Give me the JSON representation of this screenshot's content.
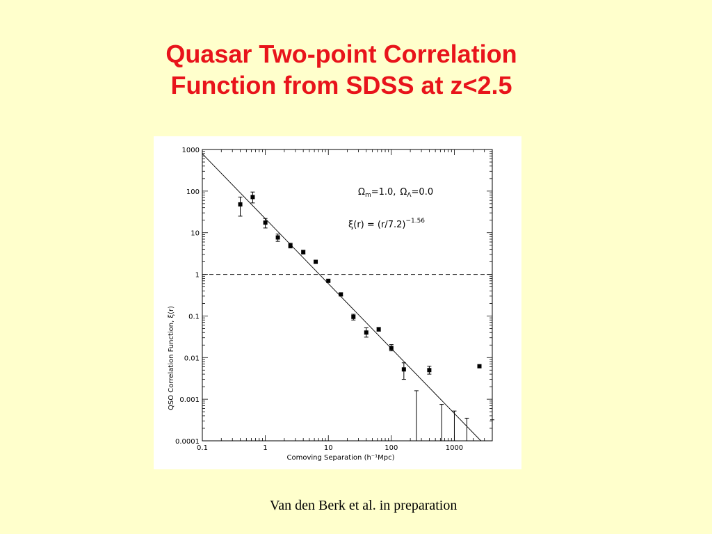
{
  "title": {
    "line1": "Quasar Two-point Correlation",
    "line2": "Function from SDSS at z<2.5"
  },
  "credit": "Van den Berk et al. in preparation",
  "colors": {
    "background": "#ffffcc",
    "title": "#e8141b",
    "panel": "#ffffff",
    "ink": "#000000"
  },
  "chart_data": {
    "type": "scatter",
    "xlabel": "Comoving Separation (h⁻¹Mpc)",
    "ylabel": "QSO Correlation Function, ξ(r)",
    "xscale": "log",
    "yscale": "log",
    "xlim": [
      0.1,
      4000
    ],
    "ylim": [
      0.0001,
      1000
    ],
    "x_ticks": [
      {
        "value": 0.1,
        "label": "0.1"
      },
      {
        "value": 1,
        "label": "1"
      },
      {
        "value": 10,
        "label": "10"
      },
      {
        "value": 100,
        "label": "100"
      },
      {
        "value": 1000,
        "label": "1000"
      }
    ],
    "y_ticks": [
      {
        "value": 0.0001,
        "label": "0.0001"
      },
      {
        "value": 0.001,
        "label": "0.001"
      },
      {
        "value": 0.01,
        "label": "0.01"
      },
      {
        "value": 0.1,
        "label": "0.1"
      },
      {
        "value": 1,
        "label": "1"
      },
      {
        "value": 10,
        "label": "10"
      },
      {
        "value": 100,
        "label": "100"
      },
      {
        "value": 1000,
        "label": "1000"
      }
    ],
    "annotations": {
      "cosmology": {
        "omega": "Ω",
        "m_sub": "m",
        "m_val": "=1.0,",
        "lambda_sub": "Λ",
        "lambda_val": "=0.0"
      },
      "fit": {
        "lhs": "ξ(r)  =  (r/7.2)",
        "exponent": "−1.56"
      }
    },
    "reference_line": {
      "y": 1,
      "style": "dashed"
    },
    "fit_line": {
      "r0": 7.2,
      "gamma": 1.56
    },
    "series": [
      {
        "points": [
          {
            "x": 0.4,
            "y": 48,
            "lo": 25,
            "hi": 72
          },
          {
            "x": 0.63,
            "y": 72,
            "lo": 52,
            "hi": 95
          },
          {
            "x": 1.0,
            "y": 17.5,
            "lo": 13,
            "hi": 22
          },
          {
            "x": 1.58,
            "y": 7.7,
            "lo": 6.2,
            "hi": 9.3
          },
          {
            "x": 2.5,
            "y": 4.9,
            "lo": 4.3,
            "hi": 5.6
          },
          {
            "x": 4.0,
            "y": 3.4,
            "lo": 3.1,
            "hi": 3.8
          },
          {
            "x": 6.3,
            "y": 2.0,
            "lo": 1.9,
            "hi": 2.15
          },
          {
            "x": 10,
            "y": 0.7,
            "lo": 0.67,
            "hi": 0.73
          },
          {
            "x": 15.8,
            "y": 0.33,
            "lo": 0.31,
            "hi": 0.36
          },
          {
            "x": 25,
            "y": 0.095,
            "lo": 0.08,
            "hi": 0.11
          },
          {
            "x": 40,
            "y": 0.04,
            "lo": 0.031,
            "hi": 0.052
          },
          {
            "x": 63,
            "y": 0.048,
            "lo": 0.043,
            "hi": 0.053
          },
          {
            "x": 100,
            "y": 0.017,
            "lo": 0.0145,
            "hi": 0.0205
          },
          {
            "x": 158,
            "y": 0.0052,
            "lo": 0.003,
            "hi": 0.0075
          },
          {
            "x": 400,
            "y": 0.005,
            "lo": 0.004,
            "hi": 0.0062
          },
          {
            "x": 2500,
            "y": 0.0062,
            "lo": null,
            "hi": null
          }
        ],
        "upper_limits": [
          {
            "x": 250,
            "hi": 0.0016
          },
          {
            "x": 630,
            "hi": 0.00075
          },
          {
            "x": 1000,
            "hi": 0.00052
          },
          {
            "x": 1580,
            "hi": 0.00035
          },
          {
            "x": 4000,
            "hi": 0.00032
          }
        ]
      }
    ]
  }
}
